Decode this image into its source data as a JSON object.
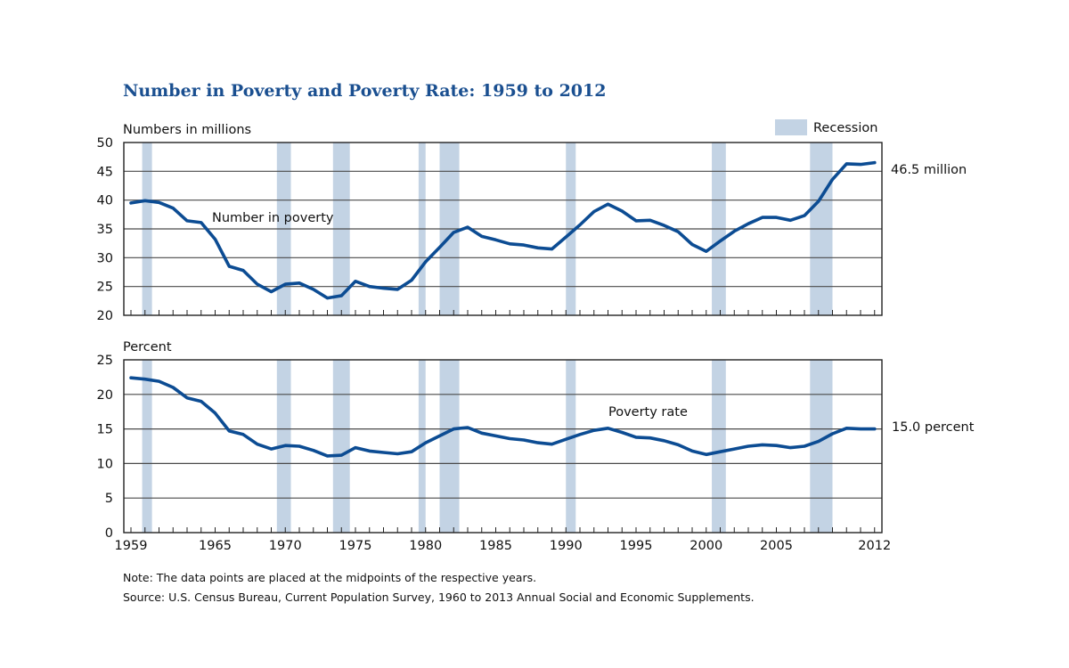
{
  "chart_data": [
    {
      "type": "line",
      "title": "Number in Poverty and Poverty Rate: 1959 to 2012",
      "ylabel": "Numbers in millions",
      "xlabel": "",
      "ylim": [
        20,
        50
      ],
      "yticks": [
        "20",
        "25",
        "30",
        "35",
        "40",
        "45",
        "50"
      ],
      "xlim": [
        1959,
        2012
      ],
      "xtick_labels": [
        "1959",
        "1965",
        "1970",
        "1975",
        "1980",
        "1985",
        "1990",
        "1995",
        "2000",
        "2005",
        "2012"
      ],
      "grid": true,
      "legend": {
        "label": "Recession",
        "placement": "top-right"
      },
      "series": [
        {
          "name": "Number in poverty",
          "annotation": "Number in poverty",
          "end_label": "46.5 million",
          "x": [
            1959,
            1960,
            1961,
            1962,
            1963,
            1964,
            1965,
            1966,
            1967,
            1968,
            1969,
            1970,
            1971,
            1972,
            1973,
            1974,
            1975,
            1976,
            1977,
            1978,
            1979,
            1980,
            1981,
            1982,
            1983,
            1984,
            1985,
            1986,
            1987,
            1988,
            1989,
            1990,
            1991,
            1992,
            1993,
            1994,
            1995,
            1996,
            1997,
            1998,
            1999,
            2000,
            2001,
            2002,
            2003,
            2004,
            2005,
            2006,
            2007,
            2008,
            2009,
            2010,
            2011,
            2012
          ],
          "values": [
            39.5,
            39.9,
            39.6,
            38.6,
            36.4,
            36.1,
            33.2,
            28.5,
            27.8,
            25.4,
            24.1,
            25.4,
            25.6,
            24.5,
            23.0,
            23.4,
            25.9,
            25.0,
            24.7,
            24.5,
            26.1,
            29.3,
            31.8,
            34.4,
            35.3,
            33.7,
            33.1,
            32.4,
            32.2,
            31.7,
            31.5,
            33.6,
            35.7,
            38.0,
            39.3,
            38.1,
            36.4,
            36.5,
            35.6,
            34.5,
            32.3,
            31.1,
            32.9,
            34.6,
            35.9,
            37.0,
            37.0,
            36.5,
            37.3,
            39.8,
            43.6,
            46.3,
            46.2,
            46.5
          ]
        }
      ]
    },
    {
      "type": "line",
      "title": "",
      "ylabel": "Percent",
      "xlabel": "",
      "ylim": [
        0,
        25
      ],
      "yticks": [
        "0",
        "5",
        "10",
        "15",
        "20",
        "25"
      ],
      "xlim": [
        1959,
        2012
      ],
      "xtick_labels": [
        "1959",
        "1965",
        "1970",
        "1975",
        "1980",
        "1985",
        "1990",
        "1995",
        "2000",
        "2005",
        "2012"
      ],
      "grid": true,
      "series": [
        {
          "name": "Poverty rate",
          "annotation": "Poverty rate",
          "end_label": "15.0 percent",
          "x": [
            1959,
            1960,
            1961,
            1962,
            1963,
            1964,
            1965,
            1966,
            1967,
            1968,
            1969,
            1970,
            1971,
            1972,
            1973,
            1974,
            1975,
            1976,
            1977,
            1978,
            1979,
            1980,
            1981,
            1982,
            1983,
            1984,
            1985,
            1986,
            1987,
            1988,
            1989,
            1990,
            1991,
            1992,
            1993,
            1994,
            1995,
            1996,
            1997,
            1998,
            1999,
            2000,
            2001,
            2002,
            2003,
            2004,
            2005,
            2006,
            2007,
            2008,
            2009,
            2010,
            2011,
            2012
          ],
          "values": [
            22.4,
            22.2,
            21.9,
            21.0,
            19.5,
            19.0,
            17.3,
            14.7,
            14.2,
            12.8,
            12.1,
            12.6,
            12.5,
            11.9,
            11.1,
            11.2,
            12.3,
            11.8,
            11.6,
            11.4,
            11.7,
            13.0,
            14.0,
            15.0,
            15.2,
            14.4,
            14.0,
            13.6,
            13.4,
            13.0,
            12.8,
            13.5,
            14.2,
            14.8,
            15.1,
            14.5,
            13.8,
            13.7,
            13.3,
            12.7,
            11.8,
            11.3,
            11.7,
            12.1,
            12.5,
            12.7,
            12.6,
            12.3,
            12.5,
            13.2,
            14.3,
            15.1,
            15.0,
            15.0
          ]
        }
      ]
    }
  ],
  "recessions": [
    {
      "start": 1960.3,
      "end": 1961.0
    },
    {
      "start": 1969.9,
      "end": 1970.9
    },
    {
      "start": 1973.9,
      "end": 1975.1
    },
    {
      "start": 1980.0,
      "end": 1980.5
    },
    {
      "start": 1981.5,
      "end": 1982.9
    },
    {
      "start": 1990.5,
      "end": 1991.2
    },
    {
      "start": 2000.9,
      "end": 2001.9
    },
    {
      "start": 2007.9,
      "end": 2009.5
    }
  ],
  "colors": {
    "title": "#1a4f90",
    "series": "#0c4c93",
    "recession": "#c3d3e4",
    "grid": "#4a4a4a"
  },
  "notes": {
    "note": "Note: The data points are placed at the midpoints of the respective years.",
    "source": "Source: U.S. Census Bureau, Current Population Survey, 1960 to 2013 Annual Social and Economic Supplements."
  }
}
